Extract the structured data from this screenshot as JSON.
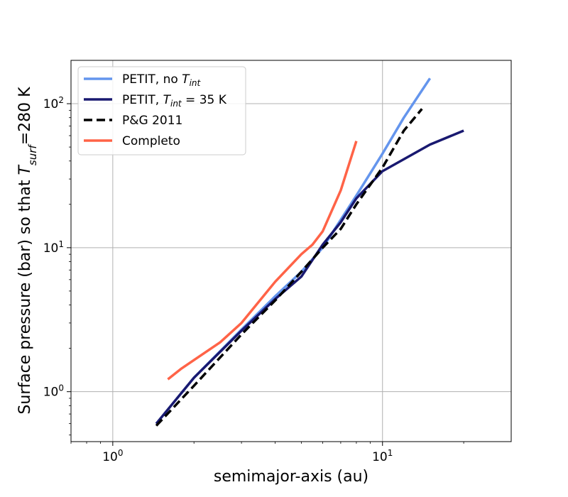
{
  "chart_data": {
    "type": "line",
    "xlabel": "semimajor-axis (au)",
    "ylabel_parts": {
      "prefix": "Surface pressure (bar) so that ",
      "T": "T",
      "sub": "surf",
      "suffix": "=280 K"
    },
    "x_scale": "log",
    "y_scale": "log",
    "xlim": [
      0.7,
      30
    ],
    "ylim": [
      0.45,
      200
    ],
    "grid": true,
    "legend_position": "top-left",
    "x_ticks": [
      {
        "value": 1,
        "base": "10",
        "exp": "0"
      },
      {
        "value": 10,
        "base": "10",
        "exp": "1"
      }
    ],
    "y_ticks": [
      {
        "value": 1,
        "base": "10",
        "exp": "0"
      },
      {
        "value": 10,
        "base": "10",
        "exp": "1"
      },
      {
        "value": 100,
        "base": "10",
        "exp": "2"
      }
    ],
    "series": [
      {
        "name": "PETIT, no T_int",
        "legend": {
          "prefix": "PETIT, no ",
          "T": "T",
          "sub": "int",
          "suffix": ""
        },
        "color": "#6495ED",
        "dash": "solid",
        "x": [
          1.45,
          2.0,
          3.0,
          4.0,
          5.0,
          6.0,
          8.0,
          10.0,
          12.0,
          15.0
        ],
        "y": [
          0.6,
          1.25,
          2.7,
          4.6,
          6.8,
          10.0,
          23.0,
          45.0,
          80.0,
          150.0
        ]
      },
      {
        "name": "PETIT, T_int = 35 K",
        "legend": {
          "prefix": "PETIT, ",
          "T": "T",
          "sub": "int",
          "suffix": " = 35 K"
        },
        "color": "#191970",
        "dash": "solid",
        "x": [
          1.45,
          2.0,
          3.0,
          4.0,
          5.0,
          6.0,
          7.0,
          8.0,
          10.0,
          15.0,
          20.0
        ],
        "y": [
          0.6,
          1.25,
          2.65,
          4.4,
          6.3,
          10.5,
          15.0,
          22.0,
          34.0,
          52.0,
          65.0
        ]
      },
      {
        "name": "P&G 2011",
        "legend": {
          "prefix": "P&G 2011",
          "T": "",
          "sub": "",
          "suffix": ""
        },
        "color": "#000000",
        "dash": "dashed",
        "x": [
          1.45,
          2.0,
          3.0,
          4.0,
          5.0,
          6.0,
          7.0,
          8.0,
          10.0,
          12.0,
          14.0
        ],
        "y": [
          0.58,
          1.1,
          2.5,
          4.3,
          6.8,
          10.0,
          13.5,
          20.0,
          36.0,
          65.0,
          92.0
        ]
      },
      {
        "name": "Completo",
        "legend": {
          "prefix": "Completo",
          "T": "",
          "sub": "",
          "suffix": ""
        },
        "color": "#FF6347",
        "dash": "solid",
        "x": [
          1.6,
          1.8,
          2.5,
          3.0,
          4.0,
          5.0,
          5.5,
          6.0,
          7.0,
          8.0
        ],
        "y": [
          1.22,
          1.45,
          2.2,
          3.0,
          5.8,
          9.0,
          10.5,
          13.0,
          25.0,
          55.0
        ]
      }
    ]
  }
}
